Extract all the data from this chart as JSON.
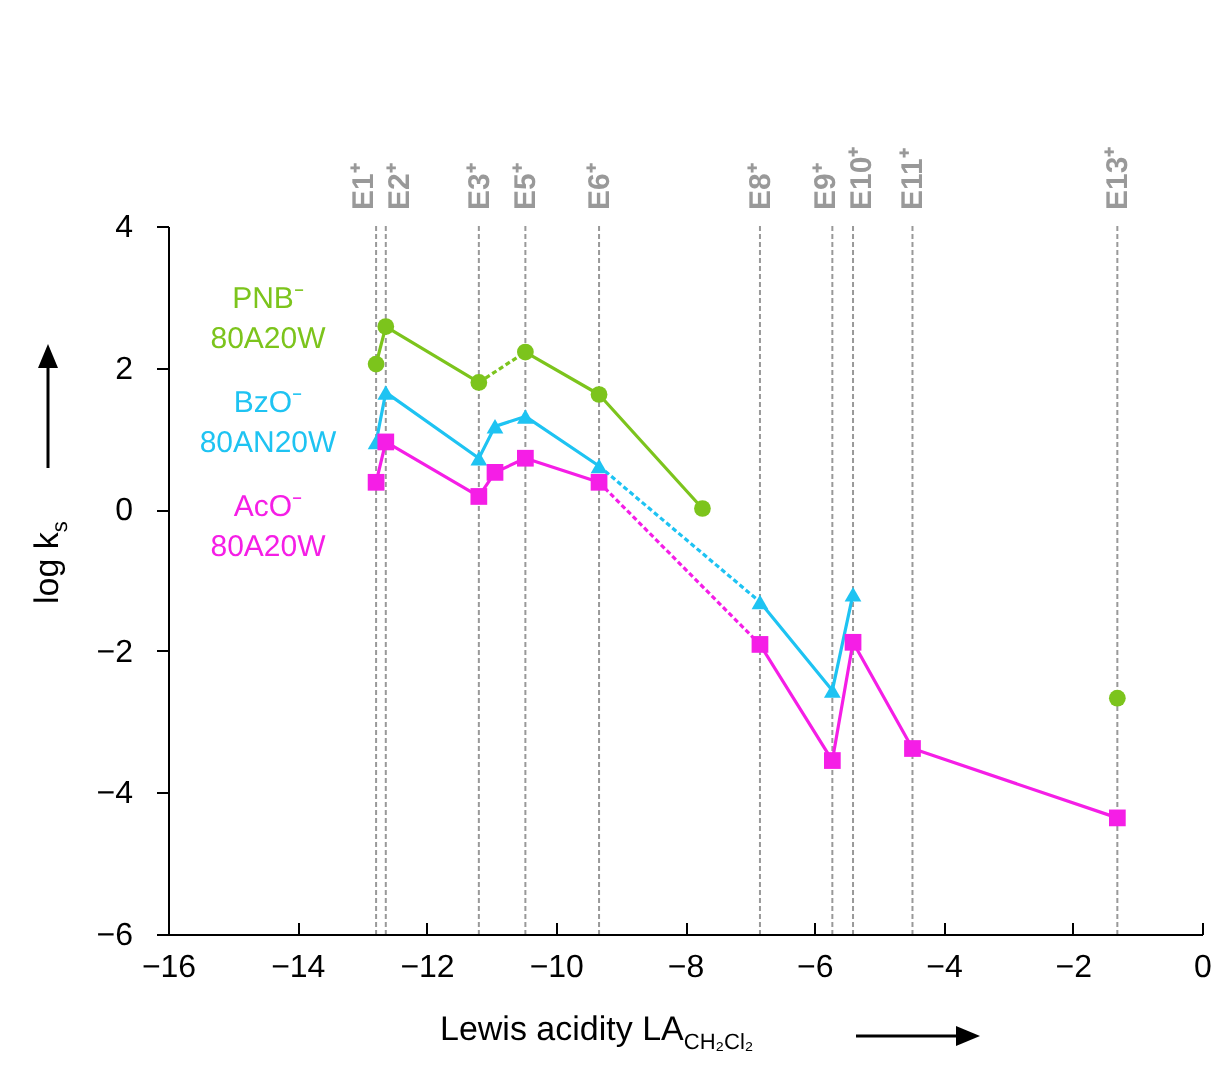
{
  "chart_data": {
    "type": "line",
    "xlabel": "Lewis acidity LA$_{CH₂Cl₂}$",
    "ylabel": "log k$_{s}$",
    "xlim": [
      -16,
      0
    ],
    "xticks": [
      -16,
      -14,
      -12,
      -10,
      -8,
      -6,
      -4,
      -2,
      0
    ],
    "ylim": [
      -6,
      4
    ],
    "yticks": [
      -6,
      -4,
      -2,
      0,
      2,
      4
    ],
    "grid": false,
    "series": [
      {
        "name": "PNB⁻ 80A20W",
        "color": "#7cc41c",
        "marker": "circle",
        "line_style": "solid",
        "x": [
          -12.78,
          -12.63,
          -11.19,
          null,
          -10.47,
          -9.33,
          -7.73,
          null,
          -1.31
        ],
        "values": [
          2.05,
          2.58,
          1.79,
          null,
          2.22,
          1.62,
          0.01,
          null,
          -2.67
        ]
      },
      {
        "name": "BzO⁻ 80AN20W",
        "color": "#1ec3f2",
        "marker": "triangle",
        "line_style": "solid",
        "x": [
          -12.78,
          -12.63,
          -11.19,
          -10.94,
          -10.47,
          -9.33,
          null,
          -6.84,
          -5.72,
          -5.4
        ],
        "values": [
          0.95,
          1.65,
          0.72,
          1.17,
          1.31,
          0.61,
          null,
          -1.31,
          -2.56,
          -1.2
        ]
      },
      {
        "name": "AcO⁻ 80A20W",
        "color": "#f51ee6",
        "marker": "square",
        "line_style": "solid",
        "x": [
          -12.78,
          -12.63,
          -11.19,
          -10.94,
          -10.47,
          -9.33,
          null,
          -6.84,
          -5.72,
          -5.4,
          -4.48,
          -1.31
        ],
        "values": [
          0.38,
          0.95,
          0.18,
          0.52,
          0.72,
          0.38,
          null,
          -1.91,
          -3.55,
          -1.88,
          -3.38,
          -4.36
        ]
      },
      {
        "color": "#7cc41d",
        "marker": "none",
        "line_style": "dotted",
        "x": [
          -11.19,
          -10.47
        ],
        "values": [
          1.79,
          2.22
        ]
      },
      {
        "color": "#1ec3f3",
        "marker": "none",
        "line_style": "dotted",
        "x": [
          -9.33,
          -6.84
        ],
        "values": [
          0.61,
          -1.31
        ]
      },
      {
        "color": "#f51ee7",
        "marker": "none",
        "line_style": "dotted",
        "x": [
          -9.33,
          -6.84
        ],
        "values": [
          0.38,
          -1.91
        ]
      }
    ],
    "ref_lines": [
      {
        "axis": "x",
        "value": -12.78,
        "label": "E1⁺",
        "color": "#999999",
        "line_style": "dotted"
      },
      {
        "axis": "x",
        "value": -12.63,
        "label": "E2⁺",
        "color": "#999999",
        "line_style": "dotted"
      },
      {
        "axis": "x",
        "value": -11.19,
        "label": "E3⁺",
        "color": "#999999",
        "line_style": "dotted"
      },
      {
        "axis": "x",
        "value": -10.47,
        "label": "E5⁺",
        "color": "#999999",
        "line_style": "dotted"
      },
      {
        "axis": "x",
        "value": -9.33,
        "label": "E6⁺",
        "color": "#999999",
        "line_style": "dotted"
      },
      {
        "axis": "x",
        "value": -6.84,
        "label": "E8⁺",
        "color": "#999999",
        "line_style": "dotted"
      },
      {
        "axis": "x",
        "value": -5.72,
        "label": "E9⁺",
        "color": "#999999",
        "line_style": "dotted"
      },
      {
        "axis": "x",
        "value": -5.4,
        "label": "E10⁺",
        "color": "#999999",
        "line_style": "dotted"
      },
      {
        "axis": "x",
        "value": -4.48,
        "label": "E11⁺",
        "color": "#999999",
        "line_style": "dotted"
      },
      {
        "axis": "x",
        "value": -1.31,
        "label": "E13⁺",
        "color": "#999999",
        "line_style": "dotted"
      }
    ]
  }
}
